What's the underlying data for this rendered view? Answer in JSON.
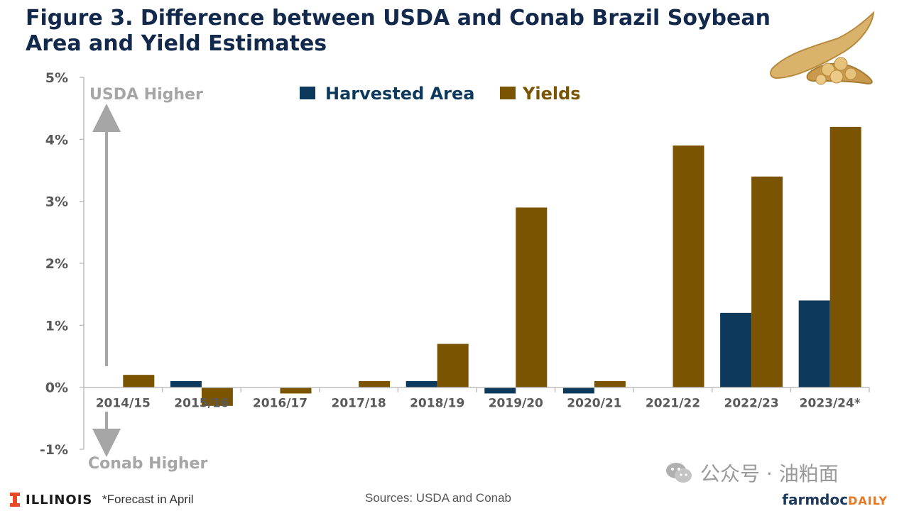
{
  "title": {
    "line1": "Figure 3. Difference between USDA and Conab Brazil Soybean",
    "line2": "Area and Yield Estimates"
  },
  "chart_data": {
    "type": "bar",
    "categories": [
      "2014/15",
      "2015/16",
      "2016/17",
      "2017/18",
      "2018/19",
      "2019/20",
      "2020/21",
      "2021/22",
      "2022/23",
      "2023/24*"
    ],
    "series": [
      {
        "name": "Harvested Area",
        "color": "#0d3a5c",
        "values": [
          0.0,
          0.1,
          0.0,
          0.0,
          0.1,
          -0.1,
          -0.1,
          0.0,
          1.2,
          1.4
        ]
      },
      {
        "name": "Yields",
        "color": "#7a5400",
        "values": [
          0.2,
          -0.3,
          -0.1,
          0.1,
          0.7,
          2.9,
          0.1,
          3.9,
          3.4,
          4.2
        ]
      }
    ],
    "ylim": [
      -1,
      5
    ],
    "yticks": [
      "5%",
      "4%",
      "3%",
      "2%",
      "1%",
      "0%",
      "-1%"
    ],
    "ytick_values": [
      5,
      4,
      3,
      2,
      1,
      0,
      -1
    ],
    "legend_placement": "top-center",
    "grid": false,
    "annotations": {
      "upper": "USDA Higher",
      "lower": "Conab Higher"
    }
  },
  "footer": {
    "logo_text": "ILLINOIS",
    "note": "*Forecast in April",
    "source": "Sources: USDA and Conab",
    "brand_main": "farmdoc",
    "brand_accent": "DAILY",
    "watermark": "公众号 · 油粕面"
  },
  "colors": {
    "title": "#13294b",
    "axis_text": "#595959",
    "annotation": "#a6a6a6",
    "area": "#0d3a5c",
    "yields": "#7a5400",
    "illinois_orange": "#e84a27"
  },
  "icons": [
    "soybean-pod-icon",
    "wechat-icon",
    "illinois-block-i-icon"
  ]
}
